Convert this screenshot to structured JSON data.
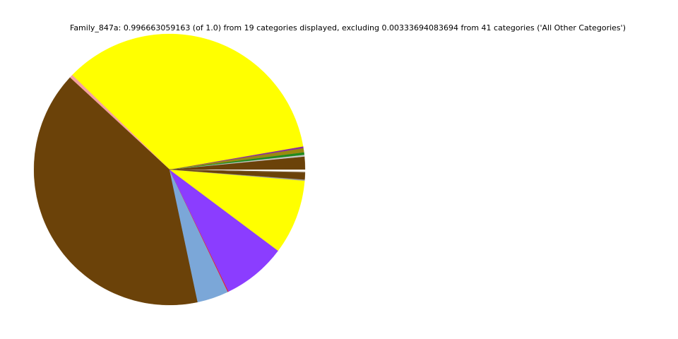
{
  "chart_data": {
    "type": "pie",
    "title": "Family_847a: 0.996663059163 (of 1.0) from 19 categories displayed, excluding 0.00333694083694 from 41 categories ('All Other Categories')",
    "start_angle_deg": 0,
    "direction": "counterclockwise",
    "legend": "none",
    "slices": [
      {
        "value": 0.0153,
        "color": "#6b4209"
      },
      {
        "value": 0.002,
        "color": "#c8c8c8"
      },
      {
        "value": 0.003,
        "color": "#1f8a1f"
      },
      {
        "value": 0.005,
        "color": "#9a8a10"
      },
      {
        "value": 0.002,
        "color": "#8a2aa0"
      },
      {
        "value": 0.35,
        "color": "#ffff00"
      },
      {
        "value": 0.004,
        "color": "#f4a0a0"
      },
      {
        "value": 0.402,
        "color": "#6b4209"
      },
      {
        "value": 0.0375,
        "color": "#7ba7d8"
      },
      {
        "value": 0.001,
        "color": "#e0202a"
      },
      {
        "value": 0.076,
        "color": "#8b3dff"
      },
      {
        "value": 0.089,
        "color": "#ffff00"
      },
      {
        "value": 0.0014,
        "color": "#a0a0a0"
      },
      {
        "value": 0.008,
        "color": "#6b4209"
      },
      {
        "value": 0.0001,
        "color": "#6b4209"
      },
      {
        "value": 0.0001,
        "color": "#a0a0a0"
      },
      {
        "value": 0.0001,
        "color": "#6b4209"
      },
      {
        "value": 0.0001,
        "color": "#a0a0a0"
      },
      {
        "value": 0.0004,
        "color": "#6b4209"
      }
    ]
  }
}
